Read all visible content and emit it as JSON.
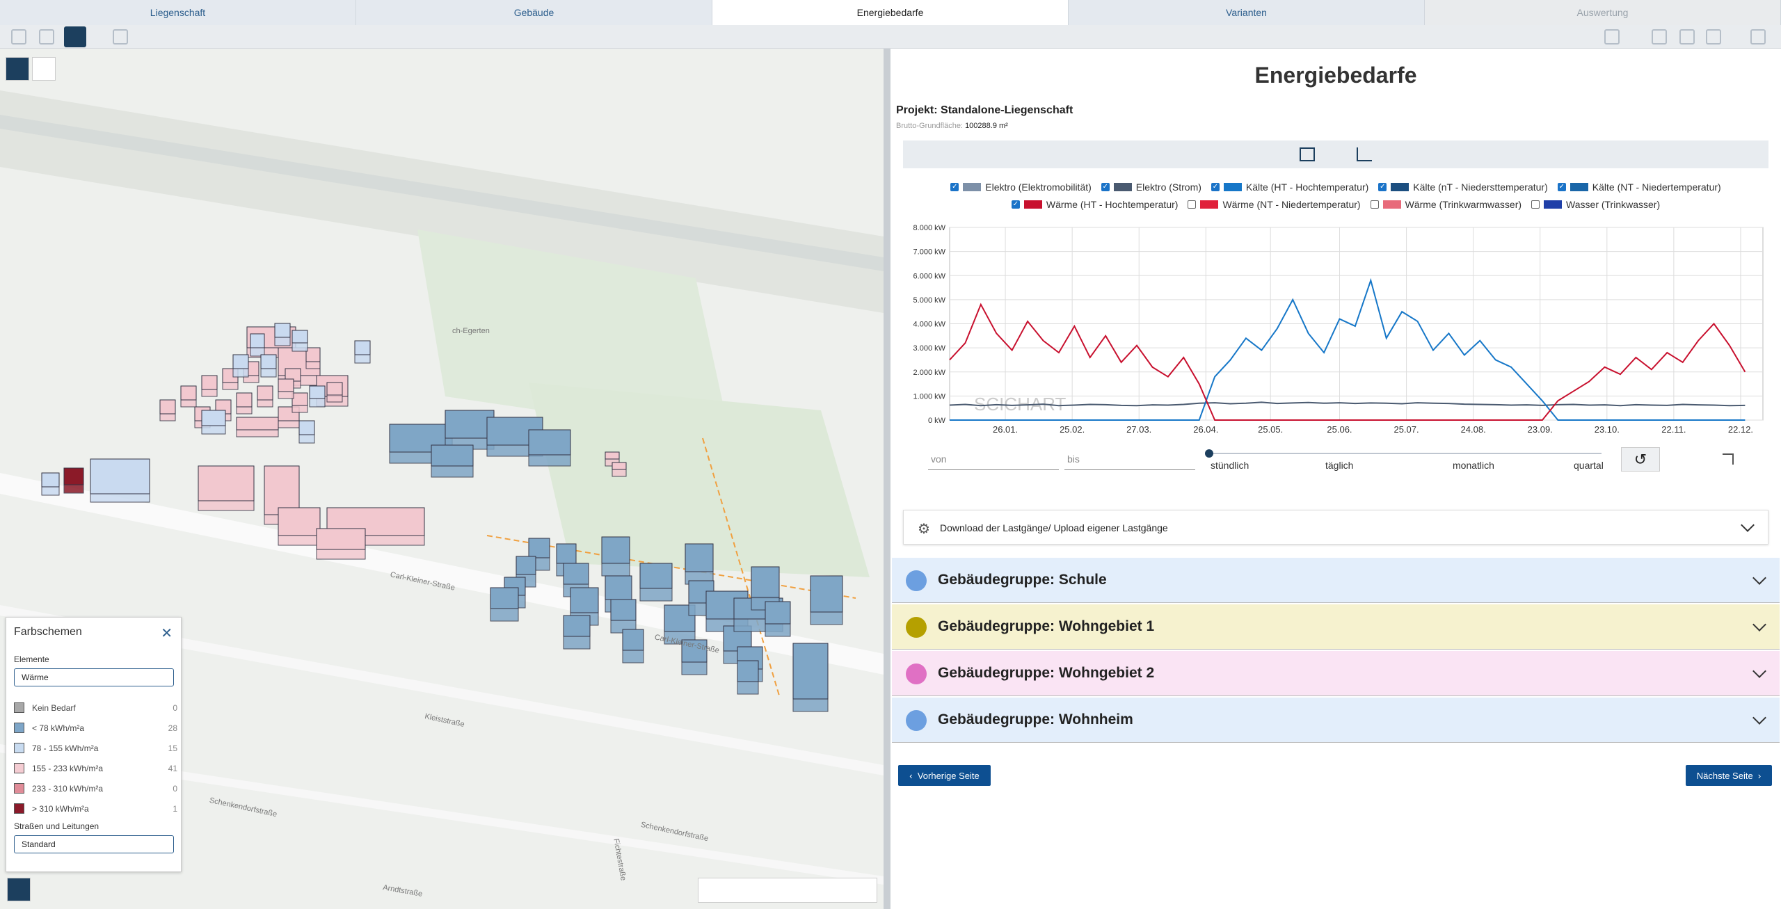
{
  "tabs": [
    "Liegenschaft",
    "Gebäude",
    "Energiebedarfe",
    "Varianten",
    "Auswertung"
  ],
  "active_tab_index": 2,
  "disabled_tab_index": 4,
  "map": {
    "street_labels": [
      "ch-Egerten",
      "Carl-Kleiner-Straße",
      "Carl-Kleiner-Straße",
      "Kleiststraße",
      "Schenkendorfstraße",
      "Schenkendorfstraße",
      "Arndtstraße",
      "Fichtestraße"
    ],
    "color_scheme_panel": {
      "title": "Farbschemen",
      "elements_label": "Elemente",
      "elements_value": "Wärme",
      "legend": [
        {
          "label": "Kein Bedarf",
          "count": 0,
          "color": "#a8a8a8"
        },
        {
          "label": "< 78 kWh/m²a",
          "count": 28,
          "color": "#7ea6c8"
        },
        {
          "label": "78 - 155 kWh/m²a",
          "count": 15,
          "color": "#c8dbf0"
        },
        {
          "label": "155 - 233 kWh/m²a",
          "count": 41,
          "color": "#f4ccd2"
        },
        {
          "label": "233 - 310 kWh/m²a",
          "count": 0,
          "color": "#e08c98"
        },
        {
          "label": "> 310 kWh/m²a",
          "count": 1,
          "color": "#8b1a2a"
        }
      ],
      "roads_label": "Straßen und Leitungen",
      "roads_value": "Standard"
    }
  },
  "page": {
    "title": "Energiebedarfe",
    "project_label": "Projekt:",
    "project_name": "Standalone-Liegenschaft",
    "area_label": "Brutto-Grundfläche:",
    "area_value": "100288.9 m²"
  },
  "chart": {
    "type": "line",
    "watermark": "SCICHART",
    "x": [
      0,
      7,
      14,
      21,
      28,
      35,
      42,
      49,
      56,
      63,
      70,
      77,
      84,
      91,
      98,
      105,
      112,
      119,
      126,
      133,
      140,
      147,
      154,
      161,
      168,
      175,
      182,
      189,
      196,
      203,
      210,
      217,
      224,
      231,
      238,
      245,
      252,
      259,
      266,
      273,
      280,
      287,
      294,
      301,
      308,
      315,
      322,
      329,
      336,
      343,
      350,
      357
    ],
    "xlim": [
      0,
      365
    ],
    "xticks": [
      {
        "value": 25,
        "label": "26.01."
      },
      {
        "value": 55,
        "label": "25.02."
      },
      {
        "value": 85,
        "label": "27.03."
      },
      {
        "value": 115,
        "label": "26.04."
      },
      {
        "value": 144,
        "label": "25.05."
      },
      {
        "value": 175,
        "label": "25.06."
      },
      {
        "value": 205,
        "label": "25.07."
      },
      {
        "value": 235,
        "label": "24.08."
      },
      {
        "value": 265,
        "label": "23.09."
      },
      {
        "value": 295,
        "label": "23.10."
      },
      {
        "value": 325,
        "label": "22.11."
      },
      {
        "value": 355,
        "label": "22.12."
      }
    ],
    "ylim": [
      0,
      8000
    ],
    "yticks": [
      {
        "value": 0,
        "label": "0 kW"
      },
      {
        "value": 1000,
        "label": "1.000 kW"
      },
      {
        "value": 2000,
        "label": "2.000 kW"
      },
      {
        "value": 3000,
        "label": "3.000 kW"
      },
      {
        "value": 4000,
        "label": "4.000 kW"
      },
      {
        "value": 5000,
        "label": "5.000 kW"
      },
      {
        "value": 6000,
        "label": "6.000 kW"
      },
      {
        "value": 7000,
        "label": "7.000 kW"
      },
      {
        "value": 8000,
        "label": "8.000 kW"
      }
    ],
    "grid": true,
    "series": [
      {
        "name": "Elektro (Elektromobilität)",
        "color": "#7d90a8",
        "checked": true
      },
      {
        "name": "Elektro (Strom)",
        "color": "#4a5a70",
        "checked": true,
        "values": [
          620,
          650,
          600,
          640,
          610,
          630,
          660,
          600,
          620,
          650,
          640,
          610,
          600,
          630,
          620,
          650,
          700,
          720,
          680,
          700,
          740,
          690,
          710,
          730,
          700,
          720,
          690,
          710,
          700,
          680,
          720,
          700,
          690,
          660,
          650,
          640,
          620,
          630,
          610,
          640,
          650,
          620,
          630,
          600,
          640,
          620,
          610,
          650,
          630,
          620,
          600,
          610
        ]
      },
      {
        "name": "Kälte (HT - Hochtemperatur)",
        "color": "#1677c8",
        "checked": true,
        "values": [
          0,
          0,
          0,
          0,
          0,
          0,
          0,
          0,
          0,
          0,
          0,
          0,
          0,
          0,
          0,
          0,
          0,
          1800,
          2500,
          3400,
          2900,
          3800,
          5000,
          3600,
          2800,
          4200,
          3900,
          5800,
          3400,
          4500,
          4100,
          2900,
          3600,
          2700,
          3300,
          2500,
          2200,
          1500,
          800,
          0,
          0,
          0,
          0,
          0,
          0,
          0,
          0,
          0,
          0,
          0,
          0,
          0
        ]
      },
      {
        "name": "Kälte (nT - Niedersttemperatur)",
        "color": "#1c4f80",
        "checked": true
      },
      {
        "name": "Kälte (NT - Niedertemperatur)",
        "color": "#1a66a8",
        "checked": true
      },
      {
        "name": "Wärme (HT - Hochtemperatur)",
        "color": "#c8102e",
        "checked": true,
        "values": [
          2500,
          3200,
          4800,
          3600,
          2900,
          4100,
          3300,
          2800,
          3900,
          2600,
          3500,
          2400,
          3100,
          2200,
          1800,
          2600,
          1500,
          0,
          0,
          0,
          0,
          0,
          0,
          0,
          0,
          0,
          0,
          0,
          0,
          0,
          0,
          0,
          0,
          0,
          0,
          0,
          0,
          0,
          0,
          800,
          1200,
          1600,
          2200,
          1900,
          2600,
          2100,
          2800,
          2400,
          3300,
          4000,
          3100,
          2000
        ]
      },
      {
        "name": "Wärme (NT - Niedertemperatur)",
        "color": "#e0203a",
        "checked": false
      },
      {
        "name": "Wärme (Trinkwarmwasser)",
        "color": "#e86a7a",
        "checked": false
      },
      {
        "name": "Wasser (Trinkwasser)",
        "color": "#1f3fa8",
        "checked": false
      }
    ]
  },
  "controls": {
    "from_placeholder": "von",
    "to_placeholder": "bis",
    "resolutions": [
      "stündlich",
      "täglich",
      "monatlich",
      "quartal"
    ]
  },
  "download_section": "Download der Lastgänge/ Upload eigener Lastgänge",
  "groups": [
    {
      "label": "Gebäudegruppe: Schule",
      "color": "#6c9fe0",
      "background": "#e3eefb"
    },
    {
      "label": "Gebäudegruppe: Wohngebiet 1",
      "color": "#b5a000",
      "background": "#f6f2cf"
    },
    {
      "label": "Gebäudegruppe: Wohngebiet 2",
      "color": "#e070c4",
      "background": "#fae4f4"
    },
    {
      "label": "Gebäudegruppe: Wohnheim",
      "color": "#6c9fe0",
      "background": "#e3eefb"
    }
  ],
  "buttons": {
    "previous": "Vorherige Seite",
    "next": "Nächste Seite"
  }
}
